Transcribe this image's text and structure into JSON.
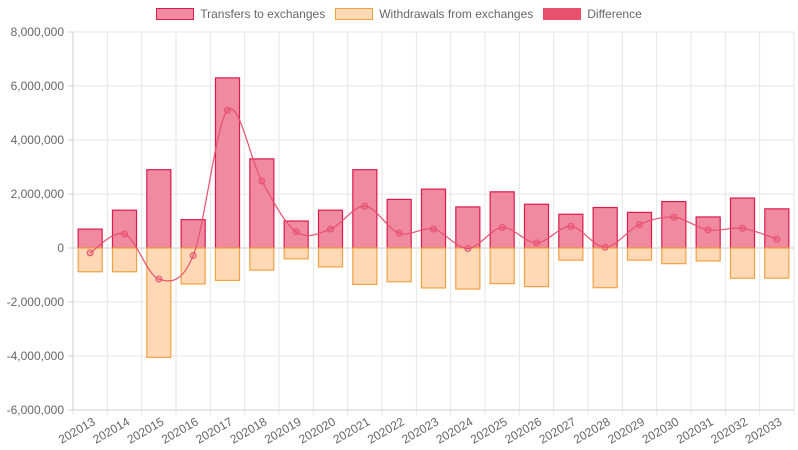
{
  "chart_data": {
    "type": "bar",
    "title": "",
    "xlabel": "",
    "ylabel": "",
    "ylim": [
      -6000000,
      8000000
    ],
    "y_ticks": [
      -6000000,
      -4000000,
      -2000000,
      0,
      2000000,
      4000000,
      6000000,
      8000000
    ],
    "y_tick_labels": [
      "-6,000,000",
      "-4,000,000",
      "-2,000,000",
      "0",
      "2,000,000",
      "4,000,000",
      "6,000,000",
      "8,000,000"
    ],
    "categories": [
      "202013",
      "202014",
      "202015",
      "202016",
      "202017",
      "202018",
      "202019",
      "202020",
      "202021",
      "202022",
      "202023",
      "202024",
      "202025",
      "202026",
      "202027",
      "202028",
      "202029",
      "202030",
      "202031",
      "202032",
      "202033"
    ],
    "grid": true,
    "legend_position": "top-center",
    "series": [
      {
        "name": "Transfers to exchanges",
        "type": "bar",
        "color": "#ee6b85",
        "border": "#d81b4a",
        "values": [
          700000,
          1400000,
          2900000,
          1050000,
          6300000,
          3300000,
          1000000,
          1400000,
          2900000,
          1800000,
          2180000,
          1520000,
          2080000,
          1620000,
          1250000,
          1500000,
          1320000,
          1720000,
          1150000,
          1850000,
          1450000
        ]
      },
      {
        "name": "Withdrawals from exchanges",
        "type": "bar",
        "color": "#ffd2a6",
        "border": "#f3a043",
        "values": [
          -880000,
          -880000,
          -4050000,
          -1330000,
          -1200000,
          -820000,
          -400000,
          -700000,
          -1350000,
          -1250000,
          -1480000,
          -1520000,
          -1320000,
          -1430000,
          -450000,
          -1470000,
          -450000,
          -580000,
          -480000,
          -1120000,
          -1120000
        ]
      },
      {
        "name": "Difference",
        "type": "line",
        "color": "#e8506e",
        "values": [
          -180000,
          520000,
          -1150000,
          -280000,
          5100000,
          2480000,
          600000,
          700000,
          1550000,
          550000,
          700000,
          -20000,
          760000,
          190000,
          800000,
          30000,
          870000,
          1140000,
          670000,
          730000,
          330000
        ]
      }
    ]
  }
}
